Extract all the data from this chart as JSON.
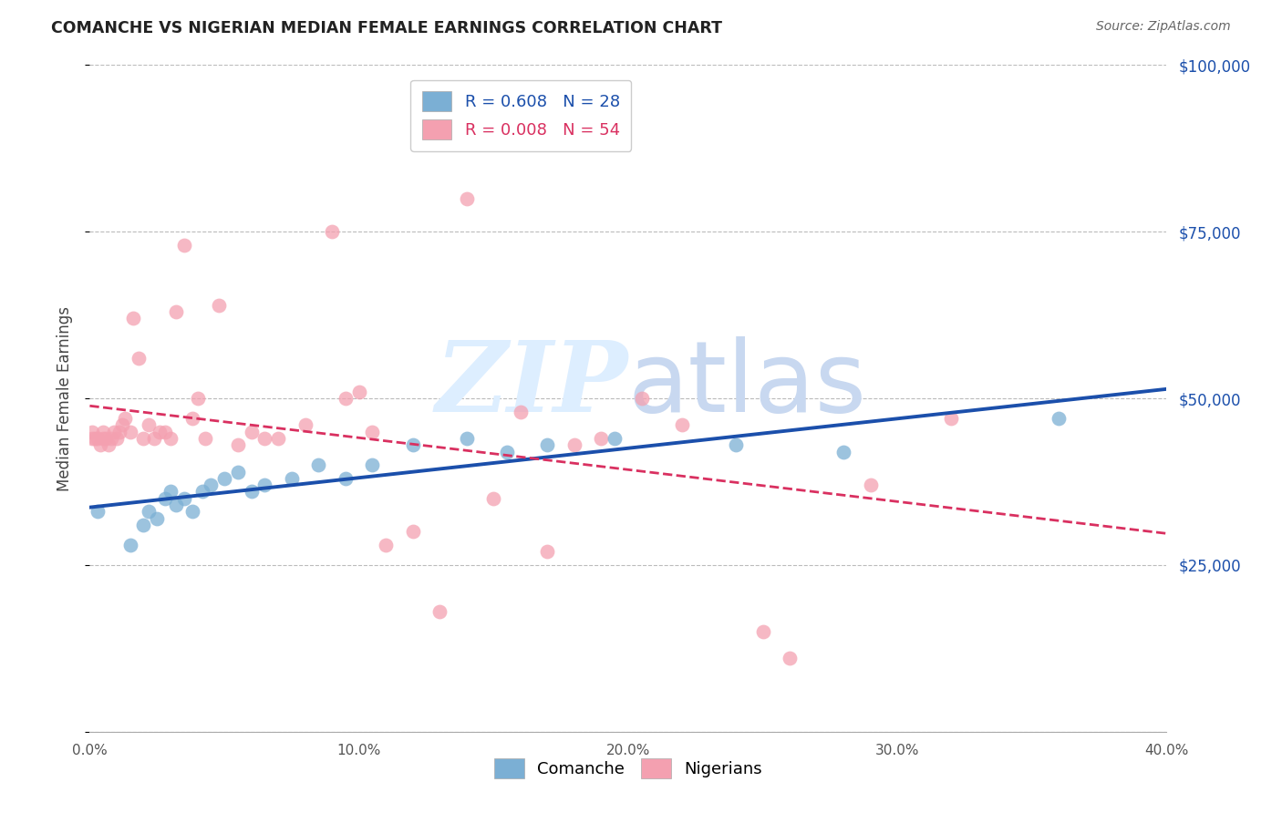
{
  "title": "COMANCHE VS NIGERIAN MEDIAN FEMALE EARNINGS CORRELATION CHART",
  "source": "Source: ZipAtlas.com",
  "ylabel_label": "Median Female Earnings",
  "x_min": 0.0,
  "x_max": 0.4,
  "y_min": 0,
  "y_max": 100000,
  "x_ticks": [
    0.0,
    0.1,
    0.2,
    0.3,
    0.4
  ],
  "x_tick_labels": [
    "0.0%",
    "10.0%",
    "20.0%",
    "30.0%",
    "40.0%"
  ],
  "y_ticks": [
    0,
    25000,
    50000,
    75000,
    100000
  ],
  "y_tick_labels": [
    "",
    "$25,000",
    "$50,000",
    "$75,000",
    "$100,000"
  ],
  "comanche_R": 0.608,
  "comanche_N": 28,
  "nigerian_R": 0.008,
  "nigerian_N": 54,
  "comanche_color": "#7BAFD4",
  "nigerian_color": "#F4A0B0",
  "comanche_line_color": "#1B4FAB",
  "nigerian_line_color": "#D93060",
  "background_color": "#FFFFFF",
  "grid_color": "#BBBBBB",
  "watermark_color": "#DDEEFF",
  "legend_label_comanche": "Comanche",
  "legend_label_nigerian": "Nigerians",
  "comanche_x": [
    0.003,
    0.015,
    0.02,
    0.022,
    0.025,
    0.028,
    0.03,
    0.032,
    0.035,
    0.038,
    0.042,
    0.045,
    0.05,
    0.055,
    0.06,
    0.065,
    0.075,
    0.085,
    0.095,
    0.105,
    0.12,
    0.14,
    0.155,
    0.17,
    0.195,
    0.24,
    0.28,
    0.36
  ],
  "comanche_y": [
    33000,
    28000,
    31000,
    33000,
    32000,
    35000,
    36000,
    34000,
    35000,
    33000,
    36000,
    37000,
    38000,
    39000,
    36000,
    37000,
    38000,
    40000,
    38000,
    40000,
    43000,
    44000,
    42000,
    43000,
    44000,
    43000,
    42000,
    47000
  ],
  "nigerian_x": [
    0.001,
    0.001,
    0.002,
    0.003,
    0.004,
    0.005,
    0.005,
    0.006,
    0.007,
    0.008,
    0.009,
    0.01,
    0.011,
    0.012,
    0.013,
    0.015,
    0.016,
    0.018,
    0.02,
    0.022,
    0.024,
    0.026,
    0.028,
    0.03,
    0.032,
    0.035,
    0.038,
    0.04,
    0.043,
    0.048,
    0.055,
    0.06,
    0.065,
    0.07,
    0.08,
    0.09,
    0.095,
    0.1,
    0.105,
    0.11,
    0.12,
    0.13,
    0.14,
    0.15,
    0.16,
    0.17,
    0.18,
    0.19,
    0.205,
    0.22,
    0.25,
    0.26,
    0.29,
    0.32
  ],
  "nigerian_y": [
    44000,
    45000,
    44000,
    44000,
    43000,
    44000,
    45000,
    44000,
    43000,
    44000,
    45000,
    44000,
    45000,
    46000,
    47000,
    45000,
    62000,
    56000,
    44000,
    46000,
    44000,
    45000,
    45000,
    44000,
    63000,
    73000,
    47000,
    50000,
    44000,
    64000,
    43000,
    45000,
    44000,
    44000,
    46000,
    75000,
    50000,
    51000,
    45000,
    28000,
    30000,
    18000,
    80000,
    35000,
    48000,
    27000,
    43000,
    44000,
    50000,
    46000,
    15000,
    11000,
    37000,
    47000
  ]
}
